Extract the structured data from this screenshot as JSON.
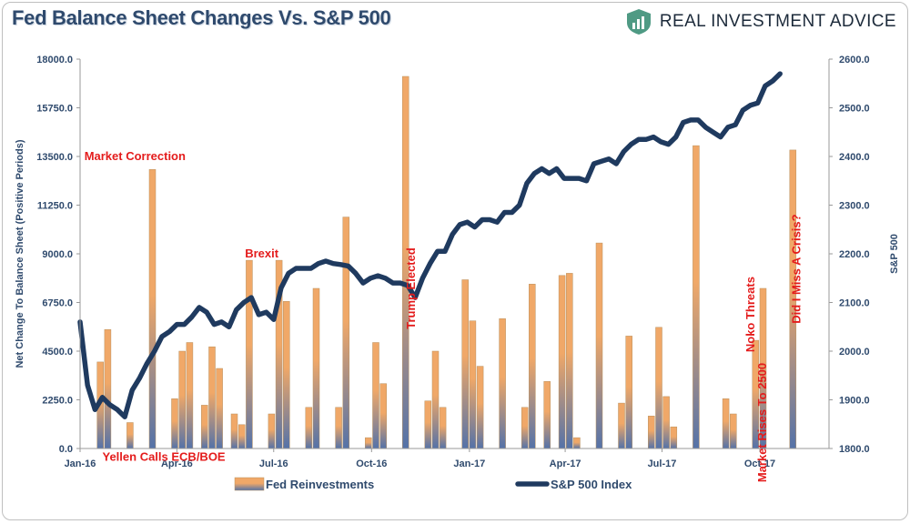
{
  "header": {
    "title": "Fed Balance Sheet Changes Vs. S&P 500",
    "brand": "REAL INVESTMENT ADVICE",
    "brand_icon": "shield-chart-icon"
  },
  "colors": {
    "line": "#1f3a5f",
    "bar_top": "#f0a868",
    "bar_bottom": "#5472a8",
    "annotation": "#e41c1c",
    "axis_text": "#2f4a6d"
  },
  "chart_data": {
    "type": "bar+line",
    "title": "Fed Balance Sheet Changes Vs. S&P 500",
    "ylabel": "Net Change To Balance Sheet (Positive Periods)",
    "y2label": "S&P 500",
    "ylim": [
      0,
      18000
    ],
    "y2lim": [
      1800,
      2600
    ],
    "xlim": [
      "2016-01-01",
      "2017-12-05"
    ],
    "yticks": [
      "0.0",
      "2250.0",
      "4500.0",
      "6750.0",
      "9000.0",
      "11250.0",
      "13500.0",
      "15750.0",
      "18000.0"
    ],
    "y2ticks": [
      "1800.0",
      "1900.0",
      "2000.0",
      "2100.0",
      "2200.0",
      "2300.0",
      "2400.0",
      "2500.0",
      "2600.0"
    ],
    "xticks": [
      {
        "label": "Jan-16",
        "date": "2016-01-01"
      },
      {
        "label": "Apr-16",
        "date": "2016-04-01"
      },
      {
        "label": "Jul-16",
        "date": "2016-07-01"
      },
      {
        "label": "Oct-16",
        "date": "2016-10-01"
      },
      {
        "label": "Jan-17",
        "date": "2017-01-01"
      },
      {
        "label": "Apr-17",
        "date": "2017-04-01"
      },
      {
        "label": "Jul-17",
        "date": "2017-07-01"
      },
      {
        "label": "Oct-17",
        "date": "2017-10-01"
      }
    ],
    "grid": false,
    "legend_position": "bottom",
    "series": [
      {
        "name": "Fed Reinvestments",
        "type": "bar",
        "points": [
          [
            "2016-01-20",
            4000
          ],
          [
            "2016-01-27",
            5500
          ],
          [
            "2016-02-17",
            1200
          ],
          [
            "2016-03-09",
            12900
          ],
          [
            "2016-03-30",
            2300
          ],
          [
            "2016-04-06",
            4500
          ],
          [
            "2016-04-13",
            4900
          ],
          [
            "2016-04-27",
            2000
          ],
          [
            "2016-05-04",
            4700
          ],
          [
            "2016-05-11",
            3700
          ],
          [
            "2016-05-25",
            1600
          ],
          [
            "2016-06-01",
            1100
          ],
          [
            "2016-06-08",
            8700
          ],
          [
            "2016-06-29",
            1600
          ],
          [
            "2016-07-06",
            8700
          ],
          [
            "2016-07-13",
            6800
          ],
          [
            "2016-08-03",
            1900
          ],
          [
            "2016-08-10",
            7400
          ],
          [
            "2016-08-31",
            1900
          ],
          [
            "2016-09-07",
            10700
          ],
          [
            "2016-09-28",
            500
          ],
          [
            "2016-10-05",
            4900
          ],
          [
            "2016-10-12",
            3000
          ],
          [
            "2016-11-02",
            17200
          ],
          [
            "2016-11-23",
            2200
          ],
          [
            "2016-11-30",
            4500
          ],
          [
            "2016-12-07",
            1900
          ],
          [
            "2016-12-28",
            7800
          ],
          [
            "2017-01-04",
            5900
          ],
          [
            "2017-01-11",
            3800
          ],
          [
            "2017-02-01",
            6000
          ],
          [
            "2017-02-22",
            1900
          ],
          [
            "2017-03-01",
            7600
          ],
          [
            "2017-03-15",
            3100
          ],
          [
            "2017-03-29",
            8000
          ],
          [
            "2017-04-05",
            8100
          ],
          [
            "2017-04-12",
            500
          ],
          [
            "2017-05-03",
            9500
          ],
          [
            "2017-05-24",
            2100
          ],
          [
            "2017-05-31",
            5200
          ],
          [
            "2017-06-21",
            1500
          ],
          [
            "2017-06-28",
            5600
          ],
          [
            "2017-07-05",
            2400
          ],
          [
            "2017-07-12",
            1000
          ],
          [
            "2017-08-02",
            14000
          ],
          [
            "2017-08-30",
            2300
          ],
          [
            "2017-09-06",
            1600
          ],
          [
            "2017-09-27",
            5000
          ],
          [
            "2017-10-04",
            7400
          ],
          [
            "2017-11-01",
            13800
          ]
        ]
      },
      {
        "name": "S&P 500 Index",
        "type": "line",
        "axis": "right",
        "points": [
          [
            "2016-01-01",
            2060
          ],
          [
            "2016-01-08",
            1930
          ],
          [
            "2016-01-15",
            1880
          ],
          [
            "2016-01-22",
            1905
          ],
          [
            "2016-01-29",
            1890
          ],
          [
            "2016-02-05",
            1880
          ],
          [
            "2016-02-12",
            1865
          ],
          [
            "2016-02-19",
            1920
          ],
          [
            "2016-02-26",
            1945
          ],
          [
            "2016-03-04",
            1975
          ],
          [
            "2016-03-11",
            2000
          ],
          [
            "2016-03-18",
            2030
          ],
          [
            "2016-03-25",
            2040
          ],
          [
            "2016-04-01",
            2055
          ],
          [
            "2016-04-08",
            2055
          ],
          [
            "2016-04-15",
            2070
          ],
          [
            "2016-04-22",
            2090
          ],
          [
            "2016-04-29",
            2080
          ],
          [
            "2016-05-06",
            2055
          ],
          [
            "2016-05-13",
            2060
          ],
          [
            "2016-05-20",
            2050
          ],
          [
            "2016-05-27",
            2085
          ],
          [
            "2016-06-03",
            2100
          ],
          [
            "2016-06-10",
            2110
          ],
          [
            "2016-06-17",
            2075
          ],
          [
            "2016-06-24",
            2080
          ],
          [
            "2016-07-01",
            2065
          ],
          [
            "2016-07-08",
            2130
          ],
          [
            "2016-07-15",
            2160
          ],
          [
            "2016-07-22",
            2170
          ],
          [
            "2016-07-29",
            2170
          ],
          [
            "2016-08-05",
            2170
          ],
          [
            "2016-08-12",
            2180
          ],
          [
            "2016-08-19",
            2185
          ],
          [
            "2016-08-26",
            2180
          ],
          [
            "2016-09-02",
            2178
          ],
          [
            "2016-09-09",
            2175
          ],
          [
            "2016-09-16",
            2160
          ],
          [
            "2016-09-23",
            2140
          ],
          [
            "2016-09-30",
            2150
          ],
          [
            "2016-10-07",
            2155
          ],
          [
            "2016-10-14",
            2150
          ],
          [
            "2016-10-21",
            2140
          ],
          [
            "2016-10-28",
            2140
          ],
          [
            "2016-11-04",
            2135
          ],
          [
            "2016-11-11",
            2110
          ],
          [
            "2016-11-18",
            2150
          ],
          [
            "2016-11-25",
            2180
          ],
          [
            "2016-12-02",
            2205
          ],
          [
            "2016-12-09",
            2205
          ],
          [
            "2016-12-16",
            2240
          ],
          [
            "2016-12-23",
            2260
          ],
          [
            "2016-12-30",
            2265
          ],
          [
            "2017-01-06",
            2255
          ],
          [
            "2017-01-13",
            2270
          ],
          [
            "2017-01-20",
            2270
          ],
          [
            "2017-01-27",
            2265
          ],
          [
            "2017-02-03",
            2285
          ],
          [
            "2017-02-10",
            2285
          ],
          [
            "2017-02-17",
            2300
          ],
          [
            "2017-02-24",
            2345
          ],
          [
            "2017-03-03",
            2365
          ],
          [
            "2017-03-10",
            2375
          ],
          [
            "2017-03-17",
            2365
          ],
          [
            "2017-03-24",
            2375
          ],
          [
            "2017-03-31",
            2355
          ],
          [
            "2017-04-07",
            2355
          ],
          [
            "2017-04-14",
            2355
          ],
          [
            "2017-04-21",
            2350
          ],
          [
            "2017-04-28",
            2385
          ],
          [
            "2017-05-05",
            2390
          ],
          [
            "2017-05-12",
            2395
          ],
          [
            "2017-05-19",
            2385
          ],
          [
            "2017-05-26",
            2410
          ],
          [
            "2017-06-02",
            2425
          ],
          [
            "2017-06-09",
            2435
          ],
          [
            "2017-06-16",
            2435
          ],
          [
            "2017-06-23",
            2440
          ],
          [
            "2017-06-30",
            2430
          ],
          [
            "2017-07-07",
            2425
          ],
          [
            "2017-07-14",
            2440
          ],
          [
            "2017-07-21",
            2470
          ],
          [
            "2017-07-28",
            2475
          ],
          [
            "2017-08-04",
            2475
          ],
          [
            "2017-08-11",
            2460
          ],
          [
            "2017-08-18",
            2450
          ],
          [
            "2017-08-25",
            2440
          ],
          [
            "2017-09-01",
            2460
          ],
          [
            "2017-09-08",
            2465
          ],
          [
            "2017-09-15",
            2495
          ],
          [
            "2017-09-22",
            2505
          ],
          [
            "2017-09-29",
            2510
          ],
          [
            "2017-10-06",
            2545
          ],
          [
            "2017-10-13",
            2555
          ],
          [
            "2017-10-20",
            2570
          ]
        ]
      }
    ],
    "annotations": [
      {
        "text": "Market Correction",
        "date": "2016-01-05",
        "value": 13500,
        "rotate": false
      },
      {
        "text": "Yellen Calls ECB/BOE",
        "date": "2016-01-22",
        "value": -400,
        "rotate": false
      },
      {
        "text": "Brexit",
        "date": "2016-06-04",
        "value": 9000,
        "rotate": false
      },
      {
        "text": "Trump Elected",
        "date": "2016-11-11",
        "value": 7400,
        "rotate": true
      },
      {
        "text": "Noko Threats",
        "date": "2017-09-26",
        "value": 6200,
        "rotate": true
      },
      {
        "text": "Market Rises To 2500",
        "date": "2017-10-07",
        "value": 1200,
        "rotate": true
      },
      {
        "text": "Did I Miss A Crisis?",
        "date": "2017-11-08",
        "value": 8300,
        "rotate": true
      }
    ]
  }
}
